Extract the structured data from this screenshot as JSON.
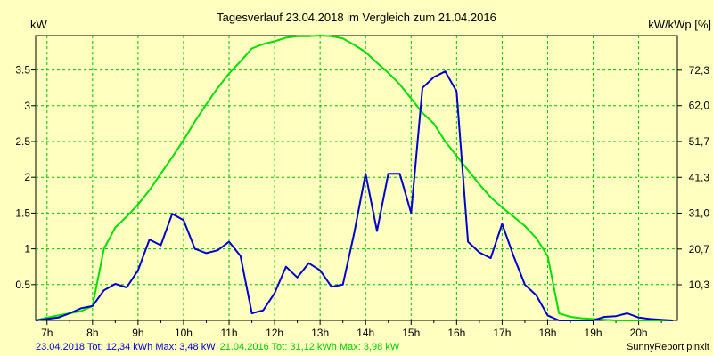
{
  "chart_data": {
    "type": "line",
    "title": "Tagesverlauf 23.04.2018 im Vergleich zum 21.04.2016",
    "ylabel_left": "kW",
    "ylabel_right": "kW/kWp [%]",
    "xlim": [
      6.75,
      20.85
    ],
    "ylim": [
      0,
      3.98
    ],
    "x_ticks": [
      7,
      8,
      9,
      10,
      11,
      12,
      13,
      14,
      15,
      16,
      17,
      18,
      19,
      20
    ],
    "x_tick_labels": [
      "7h",
      "8h",
      "9h",
      "10h",
      "11h",
      "12h",
      "13h",
      "14h",
      "15h",
      "16h",
      "17h",
      "18h",
      "19h",
      "20h"
    ],
    "y_left_ticks": [
      0.5,
      1,
      1.5,
      2,
      2.5,
      3,
      3.5
    ],
    "y_left_labels": [
      "0.5",
      "1",
      "1.5",
      "2",
      "2.5",
      "3",
      "3.5"
    ],
    "y_right_ticks": [
      0.4976,
      0.9976,
      1.4992,
      1.9992,
      2.5008,
      3.0008,
      3.4976
    ],
    "y_right_labels": [
      "10,3",
      "20,7",
      "31,0",
      "41,3",
      "51,7",
      "62,0",
      "72,3"
    ],
    "grid": true,
    "series": [
      {
        "name": "23.04.2018",
        "color": "#0000cc",
        "x": [
          6.75,
          7.0,
          7.25,
          7.5,
          7.75,
          8.0,
          8.25,
          8.5,
          8.75,
          9.0,
          9.25,
          9.5,
          9.75,
          10.0,
          10.25,
          10.5,
          10.75,
          11.0,
          11.25,
          11.5,
          11.75,
          12.0,
          12.25,
          12.5,
          12.75,
          13.0,
          13.25,
          13.5,
          13.75,
          14.0,
          14.25,
          14.5,
          14.75,
          15.0,
          15.25,
          15.5,
          15.75,
          16.0,
          16.25,
          16.5,
          16.75,
          17.0,
          17.25,
          17.5,
          17.75,
          18.0,
          18.25,
          18.5,
          18.75,
          19.0,
          19.25,
          19.5,
          19.75,
          20.0,
          20.25,
          20.5,
          20.75
        ],
        "y": [
          0.0,
          0.02,
          0.04,
          0.1,
          0.17,
          0.2,
          0.42,
          0.51,
          0.46,
          0.7,
          1.13,
          1.05,
          1.49,
          1.4,
          1.0,
          0.94,
          0.98,
          1.1,
          0.9,
          0.1,
          0.14,
          0.38,
          0.75,
          0.6,
          0.8,
          0.7,
          0.47,
          0.5,
          1.22,
          2.05,
          1.25,
          2.05,
          2.05,
          1.5,
          3.25,
          3.4,
          3.48,
          3.2,
          1.1,
          0.95,
          0.87,
          1.35,
          0.9,
          0.5,
          0.35,
          0.07,
          0.0,
          0.0,
          0.0,
          0.0,
          0.05,
          0.06,
          0.1,
          0.04,
          0.02,
          0.01,
          0.0
        ]
      },
      {
        "name": "21.04.2016",
        "color": "#00e000",
        "x": [
          6.75,
          7.0,
          7.25,
          7.5,
          7.75,
          8.0,
          8.25,
          8.5,
          8.75,
          9.0,
          9.25,
          9.5,
          9.75,
          10.0,
          10.25,
          10.5,
          10.75,
          11.0,
          11.25,
          11.5,
          11.75,
          12.0,
          12.25,
          12.5,
          12.75,
          13.0,
          13.25,
          13.5,
          13.75,
          14.0,
          14.25,
          14.5,
          14.75,
          15.0,
          15.25,
          15.5,
          15.75,
          16.0,
          16.25,
          16.5,
          16.75,
          17.0,
          17.25,
          17.5,
          17.75,
          18.0,
          18.25,
          18.5,
          18.75,
          19.0,
          19.25,
          19.5,
          19.75,
          20.0,
          20.25,
          20.5,
          20.75
        ],
        "y": [
          0.0,
          0.04,
          0.07,
          0.1,
          0.13,
          0.2,
          1.0,
          1.3,
          1.45,
          1.62,
          1.82,
          2.05,
          2.28,
          2.52,
          2.78,
          3.02,
          3.25,
          3.45,
          3.62,
          3.8,
          3.86,
          3.9,
          3.95,
          3.97,
          3.97,
          3.98,
          3.97,
          3.94,
          3.85,
          3.75,
          3.6,
          3.46,
          3.3,
          3.1,
          2.9,
          2.75,
          2.5,
          2.3,
          2.1,
          1.9,
          1.72,
          1.58,
          1.45,
          1.32,
          1.15,
          0.9,
          0.1,
          0.05,
          0.03,
          0.02,
          0.01,
          0.0,
          0.0,
          0.0,
          0.0,
          0.0,
          0.0
        ]
      }
    ],
    "footer": {
      "left_part1": "23.04.2018 Tot: 12,34 kWh Max: 3,48 kW",
      "left_part2": "21.04.2016 Tot: 31,12 kWh Max: 3,98 kW",
      "right": "SunnyReport pinxit"
    }
  }
}
